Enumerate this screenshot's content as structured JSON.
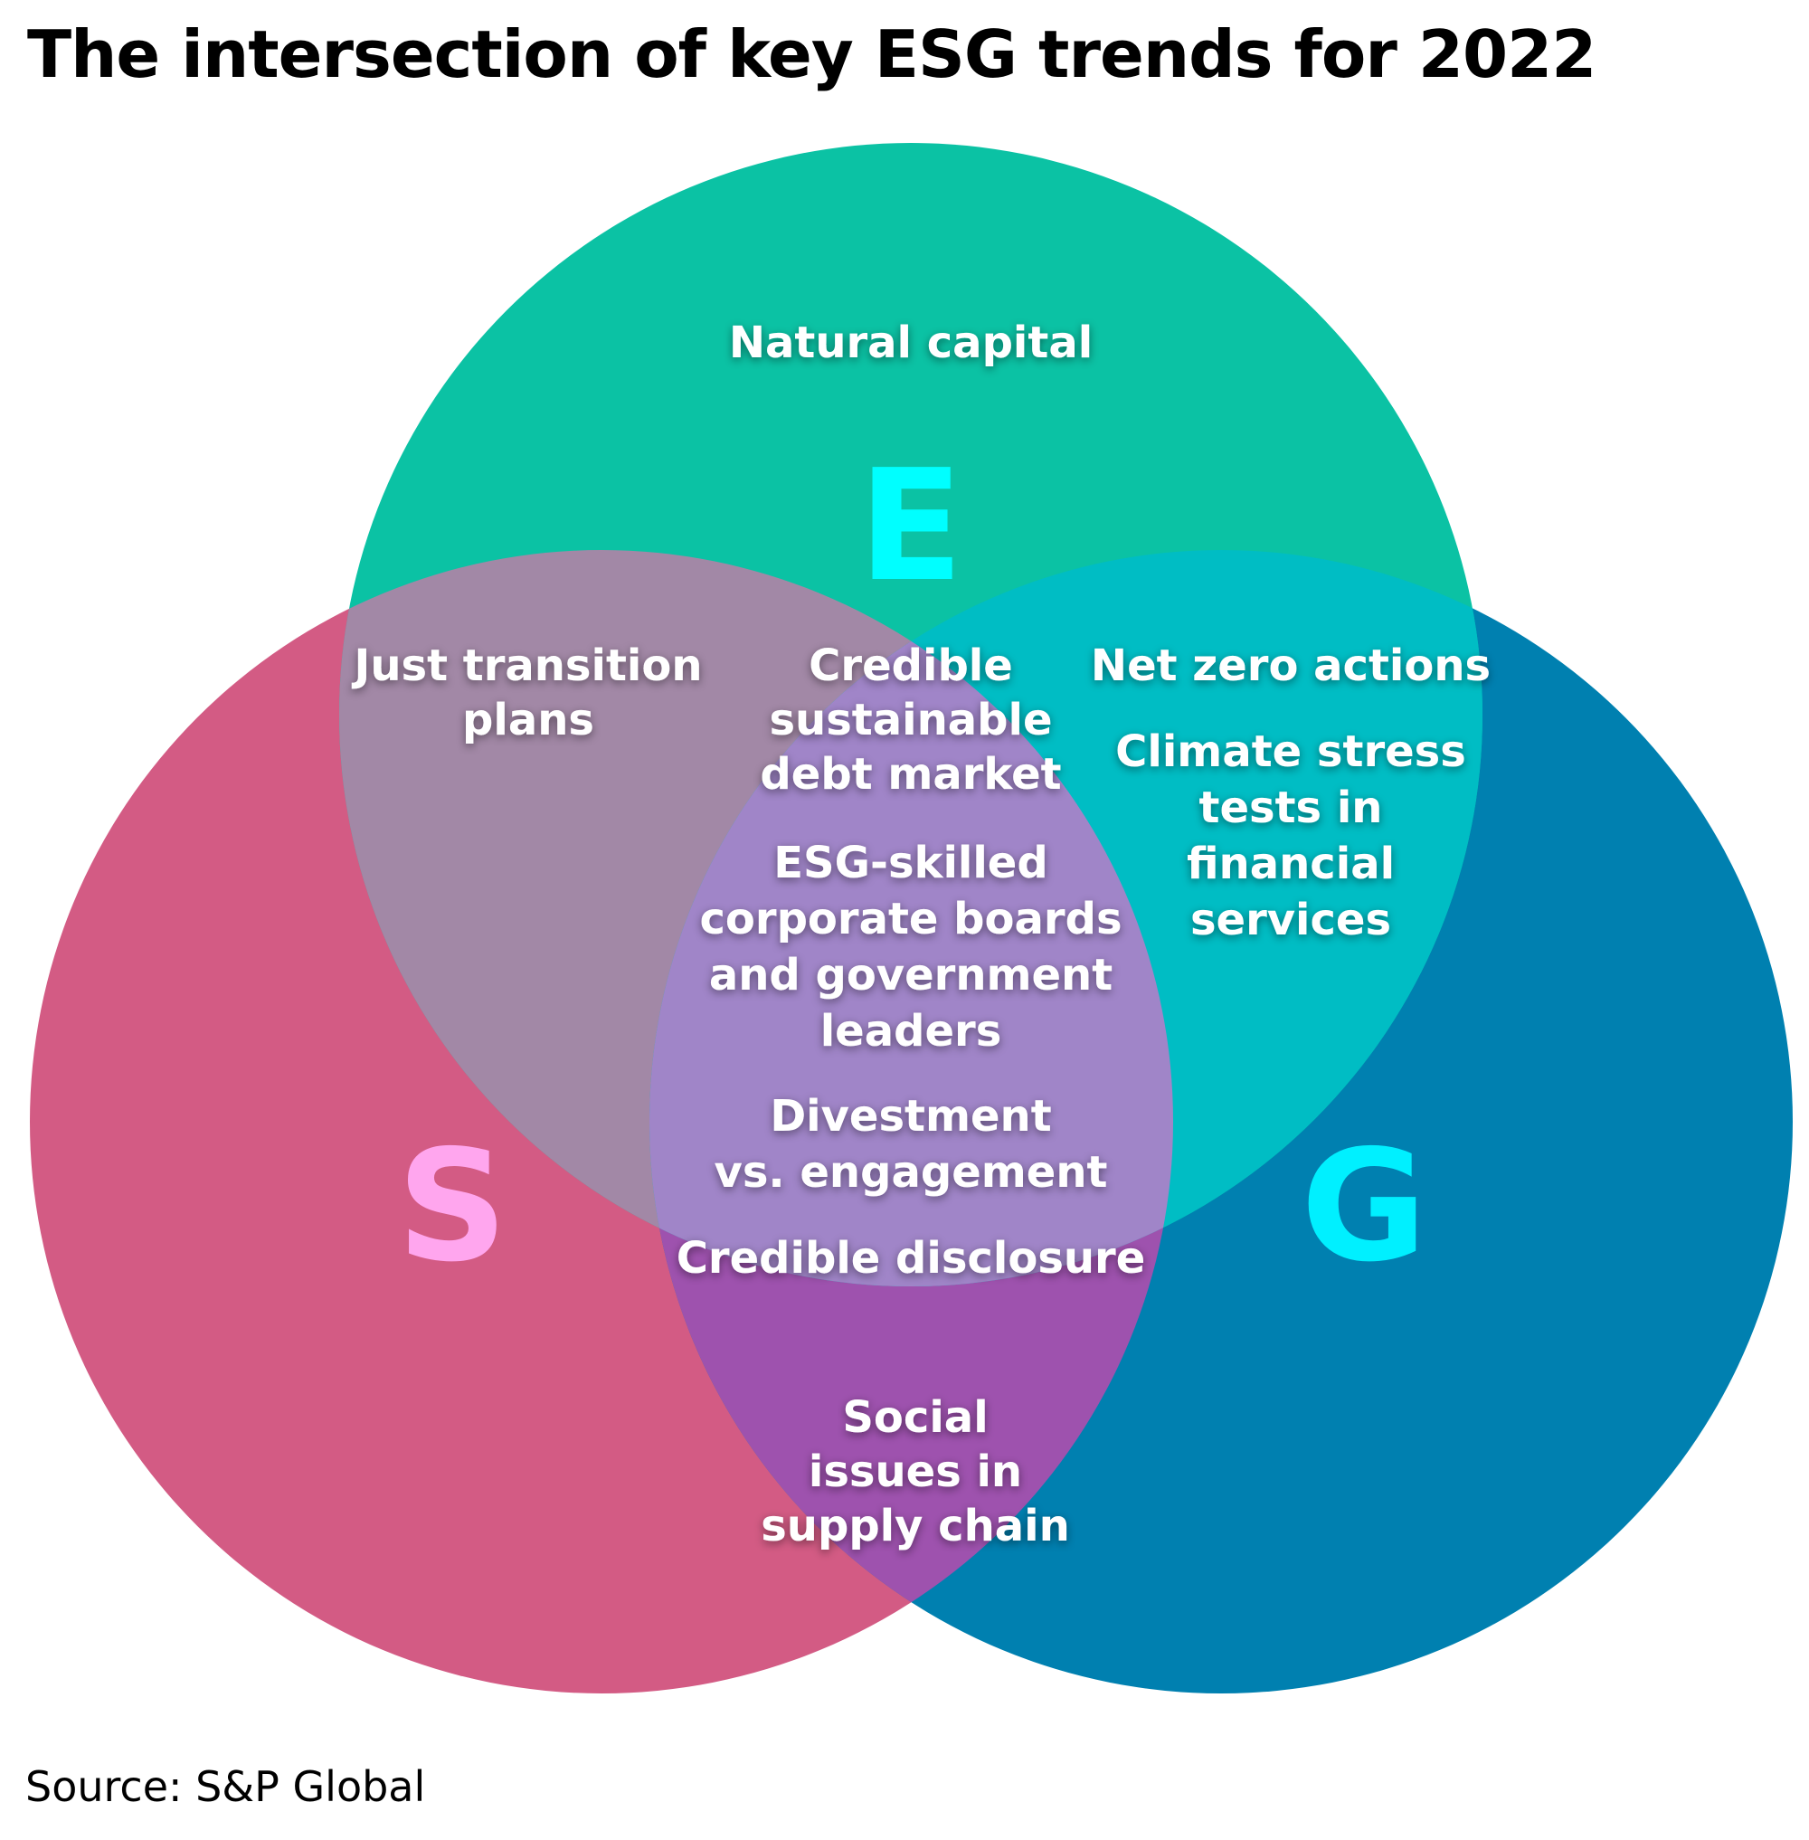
{
  "title": "The intersection of key ESG trends for 2022",
  "source": "Source: S&P Global",
  "colors": {
    "environmental": "#0bc2a4",
    "social": "#d35b84",
    "governance": "#0080b0",
    "e_letter": "#00ffff",
    "s_letter": "#ffa6ee",
    "g_letter": "#00f0ff"
  },
  "letters": {
    "e": "E",
    "s": "S",
    "g": "G"
  },
  "trends": {
    "natural_capital": [
      "Natural capital"
    ],
    "just_transition": [
      "Just transition",
      "plans"
    ],
    "credible_debt": [
      "Credible",
      "sustainable",
      "debt market"
    ],
    "net_zero": [
      "Net zero actions"
    ],
    "climate_stress": [
      "Climate stress",
      "tests in",
      "financial",
      "services"
    ],
    "esg_boards": [
      "ESG-skilled",
      "corporate boards",
      "and government",
      "leaders"
    ],
    "divestment": [
      "Divestment",
      "vs. engagement"
    ],
    "credible_disclosure": [
      "Credible disclosure"
    ],
    "social_issues": [
      "Social",
      "issues in",
      "supply chain"
    ]
  }
}
